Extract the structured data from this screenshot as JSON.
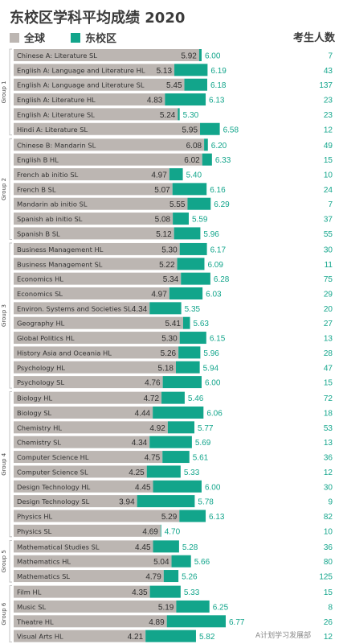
{
  "title": "东校区学科平均成绩 2020",
  "legend": [
    {
      "label": "全球",
      "color": "#bcb6b2"
    },
    {
      "label": "东校区",
      "color": "#12a58b"
    }
  ],
  "count_header": "考生人数",
  "watermark": "A计划学习发展部",
  "colors": {
    "global": "#bcb6b2",
    "east": "#12a58b",
    "count_text": "#12a58b",
    "label_text": "#333333",
    "group_line": "#b5b5b5"
  },
  "chart_data": {
    "type": "bar",
    "x_min": 0,
    "x_max": 7,
    "series": [
      {
        "name": "全球",
        "key": "global"
      },
      {
        "name": "东校区",
        "key": "east"
      }
    ],
    "groups": [
      {
        "name": "Group 1",
        "subjects": [
          {
            "name": "Chinese A: Literature SL",
            "global": 5.92,
            "east": 6.0,
            "count": 7
          },
          {
            "name": "English A: Language and Literature HL",
            "global": 5.13,
            "east": 6.19,
            "count": 43
          },
          {
            "name": "English A: Language and Literature SL",
            "global": 5.45,
            "east": 6.18,
            "count": 137
          },
          {
            "name": "English A: Literature HL",
            "global": 4.83,
            "east": 6.13,
            "count": 23
          },
          {
            "name": "English A: Literature SL",
            "global": 5.24,
            "east": 5.3,
            "count": 23
          },
          {
            "name": "Hindi A: Literature SL",
            "global": 5.95,
            "east": 6.58,
            "count": 12
          }
        ]
      },
      {
        "name": "Group 2",
        "subjects": [
          {
            "name": "Chinese B: Mandarin SL",
            "global": 6.08,
            "east": 6.2,
            "count": 49
          },
          {
            "name": "English B HL",
            "global": 6.02,
            "east": 6.33,
            "count": 15
          },
          {
            "name": "French ab initio SL",
            "global": 4.97,
            "east": 5.4,
            "count": 10
          },
          {
            "name": "French B SL",
            "global": 5.07,
            "east": 6.16,
            "count": 24
          },
          {
            "name": "Mandarin ab initio SL",
            "global": 5.55,
            "east": 6.29,
            "count": 7
          },
          {
            "name": "Spanish ab initio SL",
            "global": 5.08,
            "east": 5.59,
            "count": 37
          },
          {
            "name": "Spanish B SL",
            "global": 5.12,
            "east": 5.96,
            "count": 55
          }
        ]
      },
      {
        "name": "Group 3",
        "subjects": [
          {
            "name": "Business Management HL",
            "global": 5.3,
            "east": 6.17,
            "count": 30
          },
          {
            "name": "Business Management SL",
            "global": 5.22,
            "east": 6.09,
            "count": 11
          },
          {
            "name": "Economics HL",
            "global": 5.34,
            "east": 6.28,
            "count": 75
          },
          {
            "name": "Economics SL",
            "global": 4.97,
            "east": 6.03,
            "count": 29
          },
          {
            "name": "Environ. Systems and Societies SL",
            "global": 4.34,
            "east": 5.35,
            "count": 20
          },
          {
            "name": "Geography HL",
            "global": 5.41,
            "east": 5.63,
            "count": 27
          },
          {
            "name": "Global Politics HL",
            "global": 5.3,
            "east": 6.15,
            "count": 13
          },
          {
            "name": "History Asia and Oceania HL",
            "global": 5.26,
            "east": 5.96,
            "count": 28
          },
          {
            "name": "Psychology HL",
            "global": 5.18,
            "east": 5.94,
            "count": 47
          },
          {
            "name": "Psychology SL",
            "global": 4.76,
            "east": 6.0,
            "count": 15
          }
        ]
      },
      {
        "name": "Group 4",
        "subjects": [
          {
            "name": "Biology HL",
            "global": 4.72,
            "east": 5.46,
            "count": 72
          },
          {
            "name": "Biology SL",
            "global": 4.44,
            "east": 6.06,
            "count": 18
          },
          {
            "name": "Chemistry HL",
            "global": 4.92,
            "east": 5.77,
            "count": 53
          },
          {
            "name": "Chemistry SL",
            "global": 4.34,
            "east": 5.69,
            "count": 13
          },
          {
            "name": "Computer Science HL",
            "global": 4.75,
            "east": 5.61,
            "count": 36
          },
          {
            "name": "Computer Science SL",
            "global": 4.25,
            "east": 5.33,
            "count": 12
          },
          {
            "name": "Design Technology HL",
            "global": 4.45,
            "east": 6.0,
            "count": 30
          },
          {
            "name": "Design Technology SL",
            "global": 3.94,
            "east": 5.78,
            "count": 9
          },
          {
            "name": "Physics HL",
            "global": 5.29,
            "east": 6.13,
            "count": 82
          },
          {
            "name": "Physics SL",
            "global": 4.69,
            "east": 4.7,
            "count": 10
          }
        ]
      },
      {
        "name": "Group 5",
        "subjects": [
          {
            "name": "Mathematical Studies SL",
            "global": 4.45,
            "east": 5.28,
            "count": 36
          },
          {
            "name": "Mathematics HL",
            "global": 5.04,
            "east": 5.66,
            "count": 80
          },
          {
            "name": "Mathematics SL",
            "global": 4.79,
            "east": 5.26,
            "count": 125
          }
        ]
      },
      {
        "name": "Group 6",
        "subjects": [
          {
            "name": "Film HL",
            "global": 4.35,
            "east": 5.33,
            "count": 15
          },
          {
            "name": "Music SL",
            "global": 5.19,
            "east": 6.25,
            "count": 8
          },
          {
            "name": "Theatre HL",
            "global": 4.89,
            "east": 6.77,
            "count": 26
          },
          {
            "name": "Visual Arts HL",
            "global": 4.21,
            "east": 5.82,
            "count": 12
          }
        ]
      }
    ]
  }
}
